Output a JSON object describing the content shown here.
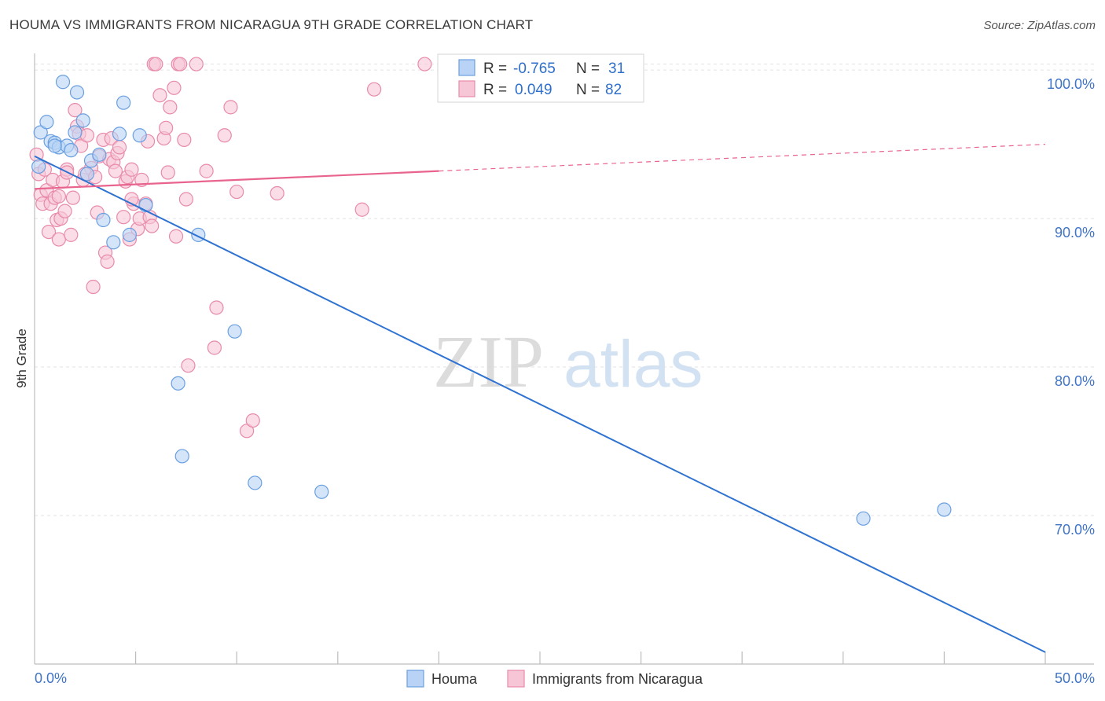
{
  "header": {
    "title": "HOUMA VS IMMIGRANTS FROM NICARAGUA 9TH GRADE CORRELATION CHART",
    "source": "Source: ZipAtlas.com"
  },
  "watermark": {
    "part1": "ZIP",
    "part2": "atlas"
  },
  "colors": {
    "houma_fill": "#b8d3f5",
    "houma_stroke": "#6a9fe0",
    "houma_line": "#2e72d2",
    "nic_fill": "#f7c6d6",
    "nic_stroke": "#e88aaa",
    "nic_line": "#e8648e",
    "grid": "#e3e3e3",
    "tick_label": "#3f74c7"
  },
  "stats_box": {
    "rows": [
      {
        "r_label": "R =",
        "r_value": "-0.765",
        "n_label": "N =",
        "n_value": "31"
      },
      {
        "r_label": "R =",
        "r_value": "0.049",
        "n_label": "N =",
        "n_value": "82"
      }
    ]
  },
  "chart_data": {
    "type": "scatter",
    "title": "HOUMA VS IMMIGRANTS FROM NICARAGUA 9TH GRADE CORRELATION CHART",
    "xlabel": "",
    "ylabel": "9th Grade",
    "xlim": [
      0,
      50
    ],
    "ylim": [
      60.0,
      100.8
    ],
    "x_tick_labels": [
      "0.0%",
      "50.0%"
    ],
    "y_ticks": [
      70,
      80,
      90,
      100
    ],
    "y_tick_labels": [
      "70.0%",
      "80.0%",
      "90.0%",
      "100.0%"
    ],
    "grid": true,
    "legend_position": "bottom-center",
    "series": [
      {
        "name": "Houma",
        "points": [
          [
            0.3,
            95.8
          ],
          [
            0.6,
            96.5
          ],
          [
            0.8,
            95.2
          ],
          [
            1.0,
            95.1
          ],
          [
            1.2,
            94.8
          ],
          [
            1.4,
            99.2
          ],
          [
            1.6,
            94.9
          ],
          [
            1.8,
            94.6
          ],
          [
            2.0,
            95.8
          ],
          [
            2.1,
            98.5
          ],
          [
            2.4,
            96.6
          ],
          [
            2.6,
            93.0
          ],
          [
            2.8,
            93.9
          ],
          [
            3.2,
            94.3
          ],
          [
            3.4,
            89.9
          ],
          [
            3.9,
            88.4
          ],
          [
            4.2,
            95.7
          ],
          [
            4.4,
            97.8
          ],
          [
            4.7,
            88.9
          ],
          [
            5.2,
            95.6
          ],
          [
            5.5,
            90.9
          ],
          [
            7.1,
            78.9
          ],
          [
            7.3,
            74.0
          ],
          [
            8.1,
            88.9
          ],
          [
            9.9,
            82.4
          ],
          [
            10.9,
            72.2
          ],
          [
            14.2,
            71.6
          ],
          [
            41.0,
            69.8
          ],
          [
            45.0,
            70.4
          ],
          [
            0.2,
            93.5
          ],
          [
            1.0,
            94.9
          ]
        ],
        "trend": {
          "x": [
            0,
            50
          ],
          "y": [
            94.2,
            60.8
          ]
        }
      },
      {
        "name": "Immigrants from Nicaragua",
        "points": [
          [
            0.1,
            94.3
          ],
          [
            0.2,
            93.0
          ],
          [
            0.3,
            91.6
          ],
          [
            0.4,
            91.0
          ],
          [
            0.5,
            93.3
          ],
          [
            0.6,
            91.9
          ],
          [
            0.7,
            89.1
          ],
          [
            0.8,
            91.0
          ],
          [
            0.9,
            92.6
          ],
          [
            1.0,
            91.4
          ],
          [
            1.1,
            89.9
          ],
          [
            1.2,
            88.6
          ],
          [
            1.3,
            90.0
          ],
          [
            1.4,
            92.5
          ],
          [
            1.5,
            90.5
          ],
          [
            1.6,
            93.3
          ],
          [
            1.8,
            88.9
          ],
          [
            1.9,
            91.4
          ],
          [
            2.0,
            97.3
          ],
          [
            2.1,
            96.2
          ],
          [
            2.2,
            95.7
          ],
          [
            2.3,
            94.9
          ],
          [
            2.4,
            92.6
          ],
          [
            2.6,
            95.6
          ],
          [
            2.8,
            93.4
          ],
          [
            2.9,
            85.4
          ],
          [
            3.1,
            90.4
          ],
          [
            3.2,
            94.2
          ],
          [
            3.4,
            95.3
          ],
          [
            3.5,
            87.7
          ],
          [
            3.6,
            87.1
          ],
          [
            3.7,
            94.0
          ],
          [
            3.8,
            95.4
          ],
          [
            3.9,
            93.8
          ],
          [
            4.0,
            93.2
          ],
          [
            4.1,
            94.4
          ],
          [
            4.2,
            94.8
          ],
          [
            4.4,
            90.1
          ],
          [
            4.5,
            92.5
          ],
          [
            4.6,
            92.8
          ],
          [
            4.7,
            88.6
          ],
          [
            4.8,
            93.3
          ],
          [
            4.9,
            91.0
          ],
          [
            5.1,
            89.3
          ],
          [
            5.2,
            90.0
          ],
          [
            5.3,
            92.6
          ],
          [
            5.5,
            91.0
          ],
          [
            5.6,
            95.2
          ],
          [
            5.7,
            90.1
          ],
          [
            5.9,
            100.4
          ],
          [
            6.0,
            100.4
          ],
          [
            6.2,
            98.3
          ],
          [
            6.4,
            95.4
          ],
          [
            6.5,
            96.1
          ],
          [
            6.6,
            93.1
          ],
          [
            6.7,
            97.5
          ],
          [
            6.9,
            98.8
          ],
          [
            7.0,
            88.8
          ],
          [
            7.1,
            100.4
          ],
          [
            7.2,
            100.4
          ],
          [
            7.4,
            95.3
          ],
          [
            7.5,
            91.3
          ],
          [
            7.6,
            80.1
          ],
          [
            8.0,
            100.4
          ],
          [
            8.5,
            93.2
          ],
          [
            8.9,
            81.3
          ],
          [
            9.0,
            84.0
          ],
          [
            9.4,
            95.6
          ],
          [
            9.7,
            97.5
          ],
          [
            10.0,
            91.8
          ],
          [
            10.5,
            75.7
          ],
          [
            10.8,
            76.4
          ],
          [
            12.0,
            91.7
          ],
          [
            16.2,
            90.6
          ],
          [
            16.8,
            98.7
          ],
          [
            19.3,
            100.4
          ],
          [
            1.6,
            93.1
          ],
          [
            2.5,
            93.0
          ],
          [
            4.8,
            91.3
          ],
          [
            3.0,
            92.8
          ],
          [
            5.8,
            89.5
          ],
          [
            1.2,
            91.5
          ]
        ],
        "trend": {
          "x": [
            0,
            50
          ],
          "y": [
            92.0,
            95.0
          ],
          "solid_until_x": 20
        }
      }
    ]
  },
  "legend": {
    "items": [
      {
        "label": "Houma"
      },
      {
        "label": "Immigrants from Nicaragua"
      }
    ]
  }
}
